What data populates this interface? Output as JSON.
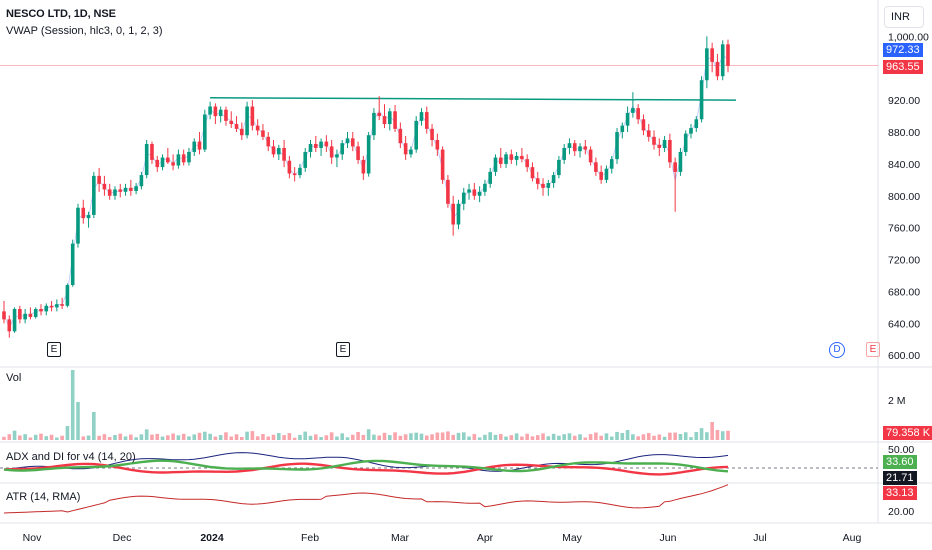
{
  "header": {
    "symbol_line": "NESCO LTD, 1D, NSE",
    "vwap_line": "VWAP (Session, hlc3, 0, 1, 2, 3)"
  },
  "toolbar": {
    "currency": "INR"
  },
  "chart_data": {
    "type": "candlestick",
    "price_axis": {
      "ticks": [
        "1,000.00",
        "960.00",
        "920.00",
        "880.00",
        "840.00",
        "800.00",
        "760.00",
        "720.00",
        "680.00",
        "640.00",
        "600.00"
      ],
      "tick_values": [
        1000,
        960,
        920,
        880,
        840,
        800,
        760,
        720,
        680,
        640,
        600
      ],
      "ylim": [
        594,
        1008
      ]
    },
    "time_axis": {
      "labels": [
        "Nov",
        "Dec",
        "2024",
        "Feb",
        "Mar",
        "Apr",
        "May",
        "Jun",
        "Jul",
        "Aug"
      ]
    },
    "price_labels": {
      "vwap": "972.33",
      "last": "963.55",
      "vwap_value": 972.33,
      "last_value": 963.55
    },
    "trendline": {
      "from": {
        "date": "Jan 2024 (late Dec)",
        "value": 923
      },
      "to": {
        "date": "Jun 2024",
        "value": 920
      }
    },
    "earnings_markers": [
      "E",
      "E",
      "D",
      "E"
    ],
    "volume": {
      "label": "Vol",
      "axis_tick": "2 M",
      "last_value": "79.358 K"
    },
    "adx": {
      "label": "ADX and DI for v4 (14, 20)",
      "axis_tick": "50.00",
      "values": [
        "33.60",
        "21.71",
        "33.13"
      ],
      "value_colors": [
        "#4caf50",
        "#131722",
        "#e53935"
      ]
    },
    "atr": {
      "label": "ATR (14, RMA)",
      "axis_tick": "20.00"
    },
    "colors": {
      "up": "#089981",
      "down": "#f23645",
      "vwap": "#2962ff",
      "trendline": "#089981",
      "adx_green": "#4caf50",
      "adx_red": "#f23645",
      "adx_navy": "#1a237e",
      "atr": "#c62828"
    },
    "candles_ohlc": [
      [
        655,
        668,
        640,
        645
      ],
      [
        645,
        650,
        622,
        630
      ],
      [
        630,
        660,
        628,
        658
      ],
      [
        658,
        662,
        640,
        645
      ],
      [
        645,
        658,
        640,
        652
      ],
      [
        652,
        660,
        645,
        648
      ],
      [
        648,
        660,
        646,
        658
      ],
      [
        658,
        664,
        650,
        655
      ],
      [
        655,
        665,
        650,
        662
      ],
      [
        662,
        668,
        655,
        660
      ],
      [
        660,
        670,
        655,
        664
      ],
      [
        664,
        672,
        658,
        662
      ],
      [
        662,
        690,
        660,
        688
      ],
      [
        688,
        745,
        686,
        740
      ],
      [
        740,
        790,
        735,
        785
      ],
      [
        785,
        795,
        765,
        772
      ],
      [
        772,
        780,
        760,
        776
      ],
      [
        776,
        830,
        772,
        825
      ],
      [
        825,
        835,
        805,
        815
      ],
      [
        815,
        825,
        800,
        808
      ],
      [
        808,
        815,
        795,
        800
      ],
      [
        800,
        812,
        795,
        808
      ],
      [
        808,
        815,
        798,
        805
      ],
      [
        805,
        815,
        800,
        810
      ],
      [
        810,
        820,
        800,
        806
      ],
      [
        806,
        816,
        802,
        812
      ],
      [
        812,
        830,
        808,
        826
      ],
      [
        826,
        870,
        822,
        865
      ],
      [
        865,
        868,
        840,
        845
      ],
      [
        845,
        850,
        830,
        836
      ],
      [
        836,
        852,
        832,
        848
      ],
      [
        848,
        860,
        840,
        842
      ],
      [
        842,
        852,
        832,
        838
      ],
      [
        838,
        858,
        834,
        852
      ],
      [
        852,
        858,
        838,
        842
      ],
      [
        842,
        860,
        838,
        855
      ],
      [
        855,
        872,
        850,
        868
      ],
      [
        868,
        880,
        852,
        858
      ],
      [
        858,
        908,
        855,
        902
      ],
      [
        902,
        918,
        896,
        912
      ],
      [
        912,
        916,
        890,
        900
      ],
      [
        900,
        912,
        892,
        908
      ],
      [
        908,
        912,
        888,
        894
      ],
      [
        894,
        906,
        885,
        890
      ],
      [
        890,
        900,
        880,
        884
      ],
      [
        884,
        892,
        870,
        876
      ],
      [
        876,
        918,
        872,
        912
      ],
      [
        912,
        920,
        882,
        888
      ],
      [
        888,
        896,
        876,
        882
      ],
      [
        882,
        890,
        870,
        874
      ],
      [
        874,
        880,
        856,
        862
      ],
      [
        862,
        870,
        848,
        852
      ],
      [
        852,
        864,
        845,
        860
      ],
      [
        860,
        870,
        836,
        844
      ],
      [
        844,
        850,
        822,
        828
      ],
      [
        828,
        836,
        818,
        826
      ],
      [
        826,
        840,
        822,
        835
      ],
      [
        835,
        860,
        830,
        855
      ],
      [
        855,
        870,
        848,
        865
      ],
      [
        865,
        875,
        855,
        860
      ],
      [
        860,
        872,
        850,
        868
      ],
      [
        868,
        876,
        855,
        862
      ],
      [
        862,
        870,
        840,
        848
      ],
      [
        848,
        858,
        836,
        852
      ],
      [
        852,
        870,
        845,
        866
      ],
      [
        866,
        880,
        860,
        872
      ],
      [
        872,
        880,
        856,
        862
      ],
      [
        862,
        868,
        840,
        845
      ],
      [
        845,
        850,
        820,
        828
      ],
      [
        828,
        880,
        824,
        876
      ],
      [
        876,
        910,
        870,
        904
      ],
      [
        904,
        925,
        895,
        900
      ],
      [
        900,
        915,
        885,
        890
      ],
      [
        890,
        910,
        882,
        906
      ],
      [
        906,
        914,
        880,
        884
      ],
      [
        884,
        892,
        860,
        866
      ],
      [
        866,
        875,
        845,
        852
      ],
      [
        852,
        862,
        848,
        858
      ],
      [
        858,
        900,
        854,
        894
      ],
      [
        894,
        910,
        888,
        905
      ],
      [
        905,
        912,
        878,
        884
      ],
      [
        884,
        890,
        862,
        870
      ],
      [
        870,
        878,
        850,
        858
      ],
      [
        858,
        862,
        815,
        820
      ],
      [
        820,
        826,
        785,
        790
      ],
      [
        790,
        800,
        750,
        764
      ],
      [
        764,
        795,
        758,
        790
      ],
      [
        790,
        810,
        782,
        804
      ],
      [
        804,
        815,
        795,
        808
      ],
      [
        808,
        816,
        795,
        800
      ],
      [
        800,
        812,
        792,
        805
      ],
      [
        805,
        820,
        800,
        815
      ],
      [
        815,
        835,
        810,
        830
      ],
      [
        830,
        852,
        825,
        848
      ],
      [
        848,
        860,
        835,
        840
      ],
      [
        840,
        855,
        835,
        852
      ],
      [
        852,
        858,
        840,
        845
      ],
      [
        845,
        855,
        838,
        850
      ],
      [
        850,
        860,
        842,
        846
      ],
      [
        846,
        852,
        830,
        836
      ],
      [
        836,
        842,
        818,
        822
      ],
      [
        822,
        830,
        808,
        815
      ],
      [
        815,
        822,
        800,
        810
      ],
      [
        810,
        820,
        800,
        816
      ],
      [
        816,
        830,
        810,
        826
      ],
      [
        826,
        850,
        822,
        845
      ],
      [
        845,
        865,
        840,
        860
      ],
      [
        860,
        872,
        852,
        866
      ],
      [
        866,
        870,
        850,
        856
      ],
      [
        856,
        866,
        848,
        862
      ],
      [
        862,
        870,
        852,
        858
      ],
      [
        858,
        862,
        838,
        842
      ],
      [
        842,
        848,
        825,
        830
      ],
      [
        830,
        838,
        815,
        820
      ],
      [
        820,
        838,
        816,
        834
      ],
      [
        834,
        850,
        828,
        846
      ],
      [
        846,
        885,
        840,
        880
      ],
      [
        880,
        892,
        872,
        888
      ],
      [
        888,
        912,
        880,
        904
      ],
      [
        904,
        930,
        898,
        910
      ],
      [
        910,
        915,
        890,
        896
      ],
      [
        896,
        902,
        876,
        882
      ],
      [
        882,
        890,
        868,
        874
      ],
      [
        874,
        882,
        858,
        864
      ],
      [
        864,
        872,
        850,
        860
      ],
      [
        860,
        875,
        855,
        870
      ],
      [
        870,
        878,
        835,
        842
      ],
      [
        842,
        848,
        780,
        830
      ],
      [
        830,
        860,
        825,
        855
      ],
      [
        855,
        882,
        850,
        878
      ],
      [
        878,
        890,
        872,
        885
      ],
      [
        885,
        900,
        880,
        896
      ],
      [
        896,
        950,
        892,
        945
      ],
      [
        945,
        1000,
        935,
        985
      ],
      [
        985,
        992,
        955,
        968
      ],
      [
        968,
        978,
        945,
        950
      ],
      [
        950,
        995,
        945,
        990
      ],
      [
        990,
        996,
        955,
        963
      ]
    ]
  }
}
